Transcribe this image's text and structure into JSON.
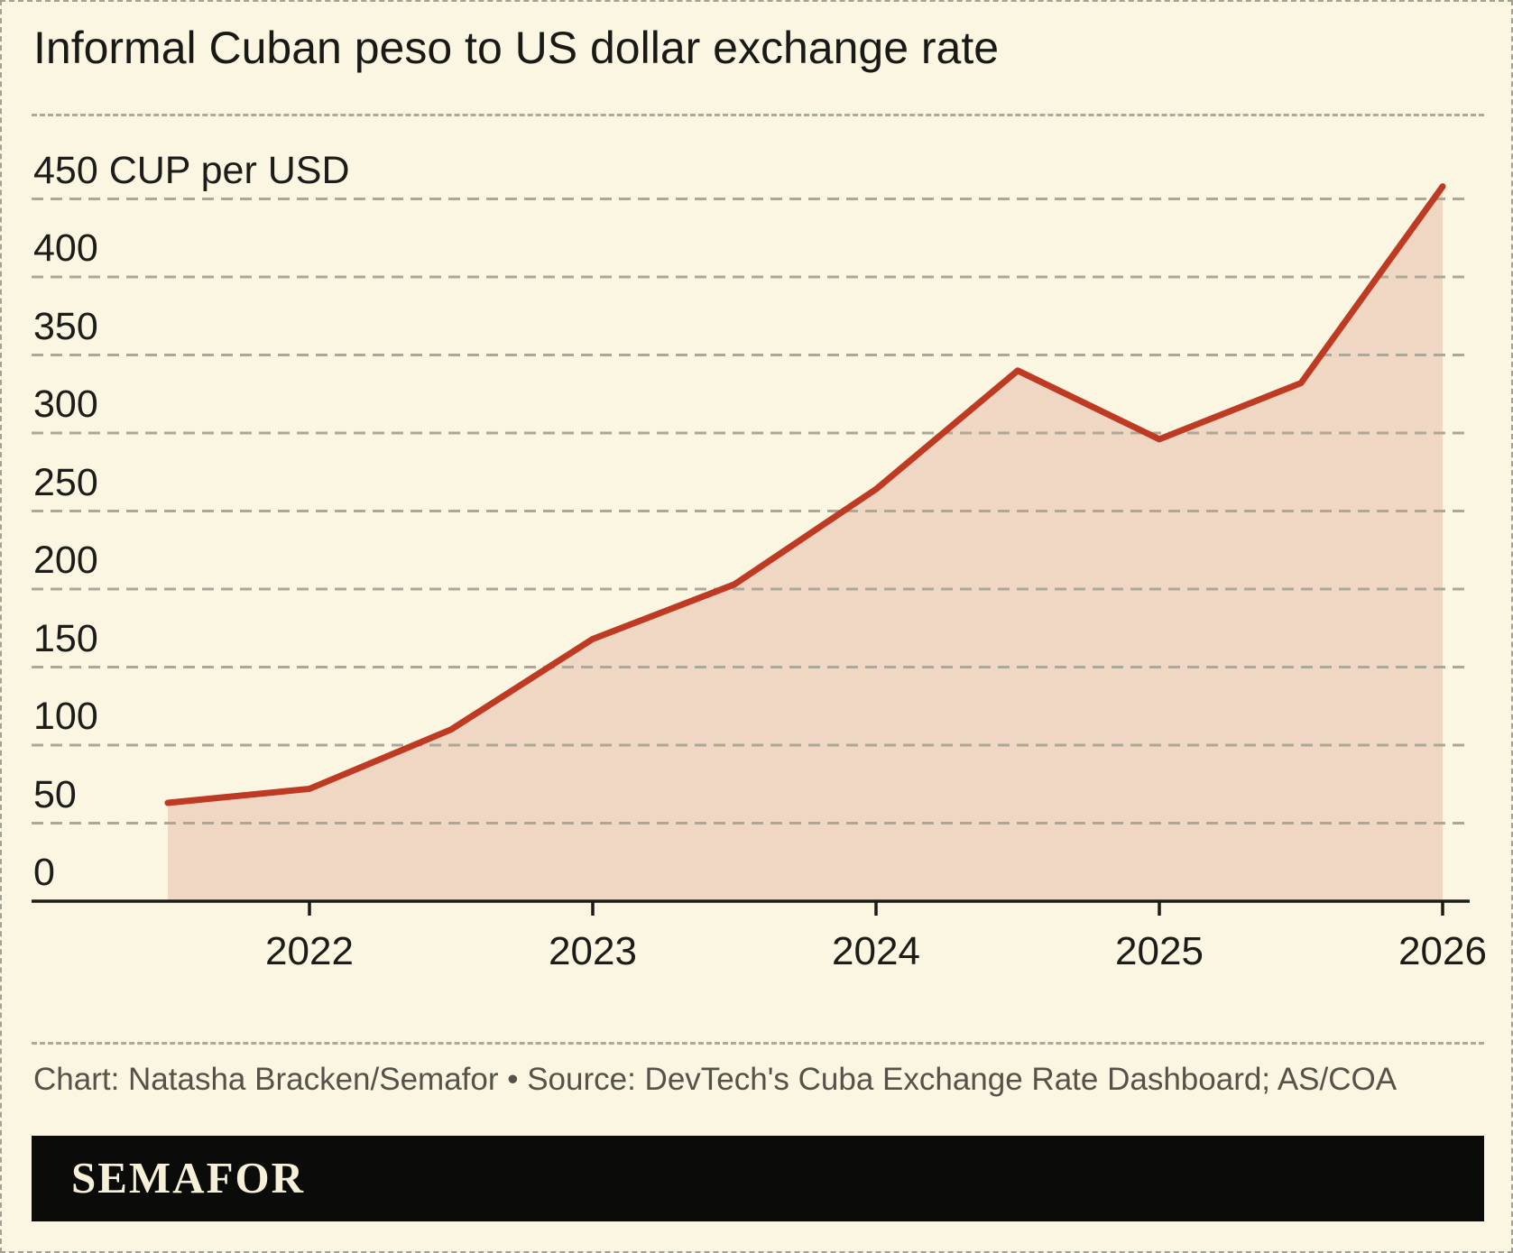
{
  "header": {
    "title": "Informal Cuban peso to US dollar exchange rate"
  },
  "chart_data": {
    "type": "area",
    "title": "Informal Cuban peso to US dollar exchange rate",
    "series_name": "Informal CUP per USD exchange rate",
    "unit": "CUP per USD",
    "x": [
      2021.5,
      2022,
      2022.5,
      2023,
      2023.5,
      2024,
      2024.5,
      2025,
      2025.5,
      2026
    ],
    "values": [
      63,
      72,
      110,
      168,
      203,
      264,
      340,
      296,
      332,
      458
    ],
    "xticks": [
      "2022",
      "2023",
      "2024",
      "2025",
      "2026"
    ],
    "yticks": [
      {
        "value": 0,
        "label": "0"
      },
      {
        "value": 50,
        "label": "50"
      },
      {
        "value": 100,
        "label": "100"
      },
      {
        "value": 150,
        "label": "150"
      },
      {
        "value": 200,
        "label": "200"
      },
      {
        "value": 250,
        "label": "250"
      },
      {
        "value": 300,
        "label": "300"
      },
      {
        "value": 350,
        "label": "350"
      },
      {
        "value": 400,
        "label": "400"
      },
      {
        "value": 450,
        "label": "450 CUP per USD"
      }
    ],
    "ylim": [
      0,
      450
    ],
    "xlim": [
      2021.5,
      2026
    ],
    "grid": "horizontal dashed",
    "legend": "none",
    "line_color": "#be3a23",
    "fill_color": "#f0d7c4"
  },
  "footer": {
    "credit": "Chart: Natasha Bracken/Semafor • Source: DevTech's Cuba Exchange Rate Dashboard; AS/COA",
    "logo": "SEMAFOR"
  },
  "colors": {
    "background": "#fbf6e1",
    "line": "#be3a23",
    "fill": "#f0d7c4",
    "grid": "#ada79a",
    "axis": "#1b1b17",
    "label_text": "#1c1c19",
    "credit_text": "#55524a",
    "bar_background": "#0b0b09",
    "logo_text": "#f6f0d8",
    "border": "#a3a096"
  }
}
